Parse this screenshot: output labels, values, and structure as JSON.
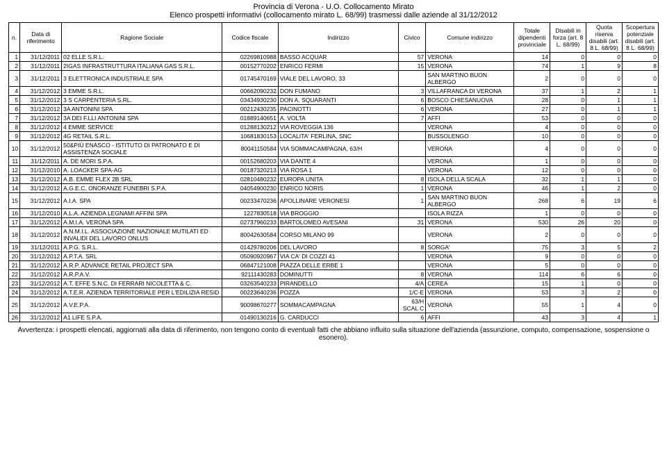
{
  "header": {
    "title1": "Provincia di Verona - U.O. Collocamento Mirato",
    "title2": "Elenco prospetti informativi (collocamento mirato L. 68/99) trasmessi dalle aziende al 31/12/2012"
  },
  "columns": {
    "n": "n.",
    "date": "Data di riferimento",
    "rag": "Ragione Sociale",
    "cf": "Codice fiscale",
    "addr": "Indirizzo",
    "civ": "Civico",
    "com": "Comune indirizzo",
    "tot": "Totale dipendenti provinciale",
    "dis": "Disabili in forza (art. 8 L. 68/99)",
    "quota": "Quota riserva disabili (art. 8 L. 68/99)",
    "scop": "Scopertura potenziale disabili (art. 8 L. 68/99)"
  },
  "rows": [
    {
      "n": 1,
      "date": "31/12/2011",
      "rag": "02 ELLE S.R.L.",
      "cf": "02269810988",
      "addr": "BASSO ACQUAR",
      "civ": "57",
      "com": "VERONA",
      "tot": 14,
      "dis": 0,
      "quota": 0,
      "scop": 0
    },
    {
      "n": 2,
      "date": "31/12/2011",
      "rag": "2IGAS INFRASTRUTTURA ITALIANA GAS S.R.L.",
      "cf": "00152770202",
      "addr": "ENRICO FERMI",
      "civ": "15",
      "com": "VERONA",
      "tot": 74,
      "dis": 1,
      "quota": 9,
      "scop": 8
    },
    {
      "n": 3,
      "date": "31/12/2011",
      "rag": "3 ELETTRONICA INDUSTRIALE SPA",
      "cf": "01745470169",
      "addr": "VIALE DEL LAVORO, 33",
      "civ": "",
      "com": "SAN MARTINO BUON ALBERGO",
      "tot": 2,
      "dis": 0,
      "quota": 0,
      "scop": 0
    },
    {
      "n": 4,
      "date": "31/12/2012",
      "rag": "3 EMME S.R.L.",
      "cf": "00662090232",
      "addr": "DON FUMANO",
      "civ": "3",
      "com": "VILLAFRANCA DI VERONA",
      "tot": 37,
      "dis": 1,
      "quota": 2,
      "scop": 1
    },
    {
      "n": 5,
      "date": "31/12/2012",
      "rag": "3 S CARPENTERIA S.RL.",
      "cf": "03434930230",
      "addr": "DON A. SQUARANTI",
      "civ": "6",
      "com": "BOSCO CHIESANUOVA",
      "tot": 28,
      "dis": 0,
      "quota": 1,
      "scop": 1
    },
    {
      "n": 6,
      "date": "31/12/2012",
      "rag": "3A ANTONINI SPA",
      "cf": "00212430235",
      "addr": "PACINOTTI",
      "civ": "6",
      "com": "VERONA",
      "tot": 27,
      "dis": 0,
      "quota": 1,
      "scop": 1
    },
    {
      "n": 7,
      "date": "31/12/2012",
      "rag": "3A DEI F.LLI ANTONINI SPA",
      "cf": "01889140651",
      "addr": "A. VOLTA",
      "civ": "7",
      "com": "AFFI",
      "tot": 53,
      "dis": 0,
      "quota": 0,
      "scop": 0
    },
    {
      "n": 8,
      "date": "31/12/2012",
      "rag": "4 EMME SERVICE",
      "cf": "01288130212",
      "addr": "VIA ROVEGGIA 136",
      "civ": "",
      "com": "VERONA",
      "tot": 4,
      "dis": 0,
      "quota": 0,
      "scop": 0
    },
    {
      "n": 9,
      "date": "31/12/2012",
      "rag": "4G RETAIL S.R.L.",
      "cf": "10681830153",
      "addr": "LOCALITA' FERLINA, SNC",
      "civ": "",
      "com": "BUSSOLENGO",
      "tot": 10,
      "dis": 0,
      "quota": 0,
      "scop": 0
    },
    {
      "n": 10,
      "date": "31/12/2012",
      "rag": "50&PIÙ ENASCO - ISTITUTO DI PATRONATO E DI ASSISTENZA SOCIALE",
      "cf": "80041150584",
      "addr": "VIA SOMMACAMPAGNA, 63/H",
      "civ": "",
      "com": "VERONA",
      "tot": 4,
      "dis": 0,
      "quota": 0,
      "scop": 0
    },
    {
      "n": 11,
      "date": "31/12/2011",
      "rag": "A. DE MORI S.P.A.",
      "cf": "00152680203",
      "addr": "VIA DANTE 4",
      "civ": "",
      "com": "VERONA",
      "tot": 1,
      "dis": 0,
      "quota": 0,
      "scop": 0
    },
    {
      "n": 12,
      "date": "31/12/2010",
      "rag": "A. LOACKER SPA-AG",
      "cf": "00187320213",
      "addr": "VIA ROSA 1",
      "civ": "",
      "com": "VERONA",
      "tot": 12,
      "dis": 0,
      "quota": 0,
      "scop": 0
    },
    {
      "n": 13,
      "date": "31/12/2012",
      "rag": "A.B. EMME FLEX 2B SRL",
      "cf": "02810480232",
      "addr": "EUROPA UNITA",
      "civ": "8",
      "com": "ISOLA DELLA SCALA",
      "tot": 32,
      "dis": 1,
      "quota": 1,
      "scop": 0
    },
    {
      "n": 14,
      "date": "31/12/2012",
      "rag": "A.G.E.C. ONORANZE FUNEBRI S.P.A.",
      "cf": "04054900230",
      "addr": "ENRICO NORIS",
      "civ": "1",
      "com": "VERONA",
      "tot": 46,
      "dis": 1,
      "quota": 2,
      "scop": 0
    },
    {
      "n": 15,
      "date": "31/12/2012",
      "rag": "A.I.A. SPA",
      "cf": "00233470236",
      "addr": "APOLLINARE VERONESI",
      "civ": "1",
      "com": "SAN MARTINO BUON ALBERGO",
      "tot": 268,
      "dis": 6,
      "quota": 19,
      "scop": 6
    },
    {
      "n": 16,
      "date": "31/12/2010",
      "rag": "A.L.A. AZIENDA LEGNAMI AFFINI SPA",
      "cf": "1227830518",
      "addr": "VIA BROGGIO",
      "civ": "",
      "com": "ISOLA RIZZA",
      "tot": 1,
      "dis": 0,
      "quota": 0,
      "scop": 0
    },
    {
      "n": 17,
      "date": "31/12/2012",
      "rag": "A.M.I.A. VERONA SPA",
      "cf": "02737960233",
      "addr": "BARTOLOMEO AVESANI",
      "civ": "31",
      "com": "VERONA",
      "tot": 530,
      "dis": 26,
      "quota": 20,
      "scop": 0
    },
    {
      "n": 18,
      "date": "31/12/2012",
      "rag": "A.N.M.I.L. ASSOCIAZIONE NAZIONALE MUTILATI ED INVALIDI DEL LAVORO ONLUS",
      "cf": "80042630584",
      "addr": "CORSO MILANO 99",
      "civ": "",
      "com": "VERONA",
      "tot": 2,
      "dis": 0,
      "quota": 0,
      "scop": 0
    },
    {
      "n": 19,
      "date": "31/12/2011",
      "rag": "A.P.G. S.R.L.",
      "cf": "01429780206",
      "addr": "DEL LAVORO",
      "civ": "8",
      "com": "SORGA'",
      "tot": 75,
      "dis": 3,
      "quota": 5,
      "scop": 2
    },
    {
      "n": 20,
      "date": "31/12/2012",
      "rag": "A.P.T.A. SRL",
      "cf": "05090920967",
      "addr": "VIA CA' DI COZZI 41",
      "civ": "",
      "com": "VERONA",
      "tot": 9,
      "dis": 0,
      "quota": 0,
      "scop": 0
    },
    {
      "n": 21,
      "date": "31/12/2012",
      "rag": "A.R.P. ADVANCE RETAIL PROJECT SPA",
      "cf": "06847121008",
      "addr": "PIAZZA DELLE ERBE 1",
      "civ": "",
      "com": "VERONA",
      "tot": 5,
      "dis": 0,
      "quota": 0,
      "scop": 0
    },
    {
      "n": 22,
      "date": "31/12/2012",
      "rag": "A.R.P.A.V.",
      "cf": "92111430283",
      "addr": "DOMINUTTI",
      "civ": "8",
      "com": "VERONA",
      "tot": 114,
      "dis": 6,
      "quota": 6,
      "scop": 0
    },
    {
      "n": 23,
      "date": "31/12/2012",
      "rag": "A.T. EFFE S.N.C. DI FERRARI NICOLETTA & C.",
      "cf": "03263540233",
      "addr": "PIRANDELLO",
      "civ": "4/A",
      "com": "CEREA",
      "tot": 15,
      "dis": 1,
      "quota": 0,
      "scop": 0
    },
    {
      "n": 24,
      "date": "31/12/2012",
      "rag": "A.T.E.R. AZIENDA TERRITORIALE PER L'EDILIZIA RESID",
      "cf": "00223640236",
      "addr": "POZZA",
      "civ": "1/C-E",
      "com": "VERONA",
      "tot": 53,
      "dis": 3,
      "quota": 2,
      "scop": 0
    },
    {
      "n": 25,
      "date": "31/12/2012",
      "rag": "A.V.E.P.A.",
      "cf": "90098670277",
      "addr": "SOMMACAMPAGNA",
      "civ": "63/H SCAL C",
      "com": "VERONA",
      "tot": 55,
      "dis": 1,
      "quota": 4,
      "scop": 0
    },
    {
      "n": 26,
      "date": "31/12/2012",
      "rag": "A1 LIFE S.P.A.",
      "cf": "01490130216",
      "addr": "G. CARDUCCI",
      "civ": "6",
      "com": "AFFI",
      "tot": 43,
      "dis": 3,
      "quota": 4,
      "scop": 1
    }
  ],
  "footer": "Avvertenza: i prospetti elencati, aggiornati alla data di riferimento, non tengono conto di eventuali fatti che abbiano influito sulla situazione dell'azienda (assunzione, computo, compensazione, sospensione o esonero)."
}
